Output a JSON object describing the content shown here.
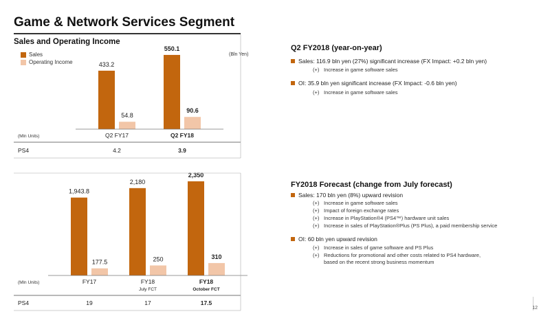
{
  "page": {
    "title": "Game & Network Services Segment",
    "page_number": "12",
    "colors": {
      "sales": "#c2660e",
      "oi": "#f2c6a8",
      "accent": "#c2660e"
    }
  },
  "chart_data": [
    {
      "type": "bar",
      "title": "Sales and Operating Income",
      "unit_label": "(Bln Yen)",
      "categories": [
        "Q2 FY17",
        "Q2 FY18"
      ],
      "category_bold": [
        false,
        true
      ],
      "series": [
        {
          "name": "Sales",
          "values": [
            433.2,
            550.1
          ],
          "labels": [
            "433.2",
            "550.1"
          ],
          "bold": [
            false,
            true
          ]
        },
        {
          "name": "Operating Income",
          "values": [
            54.8,
            90.6
          ],
          "labels": [
            "54.8",
            "90.6"
          ],
          "bold": [
            false,
            true
          ]
        }
      ],
      "ylim": [
        0,
        560
      ],
      "grid": false,
      "legend": "top-left",
      "units_row": {
        "label": "(Mln Units)",
        "row_name": "PS4",
        "values": [
          "4.2",
          "3.9"
        ],
        "bold": [
          false,
          true
        ]
      }
    },
    {
      "type": "bar",
      "categories": [
        "FY17",
        "FY18",
        "FY18"
      ],
      "category_sub": [
        "",
        "July FCT",
        "October FCT"
      ],
      "category_bold": [
        false,
        false,
        true
      ],
      "series": [
        {
          "name": "Sales",
          "values": [
            1943.8,
            2180,
            2350
          ],
          "labels": [
            "1,943.8",
            "2,180",
            "2,350"
          ],
          "bold": [
            false,
            false,
            true
          ]
        },
        {
          "name": "Operating Income",
          "values": [
            177.5,
            250,
            310
          ],
          "labels": [
            "177.5",
            "250",
            "310"
          ],
          "bold": [
            false,
            false,
            true
          ]
        }
      ],
      "ylim": [
        0,
        2400
      ],
      "grid": false,
      "units_row": {
        "label": "(Mln Units)",
        "row_name": "PS4",
        "values": [
          "19",
          "17",
          "17.5"
        ],
        "bold": [
          false,
          false,
          true
        ]
      }
    }
  ],
  "right": {
    "q2": {
      "heading": "Q2 FY2018",
      "heading_paren": "(year-on-year)",
      "bullets": [
        {
          "text": "Sales: 116.9 bln yen (27%) significant increase (FX Impact: +0.2 bln yen)",
          "subs": [
            "Increase in game software sales"
          ]
        },
        {
          "text": "OI: 35.9 bln yen significant increase (FX Impact: -0.6 bln yen)",
          "subs": [
            "Increase in game software sales"
          ]
        }
      ]
    },
    "fy": {
      "heading": "FY2018 Forecast",
      "heading_paren": "(change from July forecast)",
      "bullets": [
        {
          "text": "Sales: 170 bln yen (8%) upward revision",
          "subs": [
            "Increase in game software sales",
            "Impact of foreign exchange rates",
            "Increase in PlayStation®4 (PS4™) hardware unit sales",
            "Increase in sales of PlayStation®Plus (PS Plus), a paid membership service"
          ]
        },
        {
          "text": "OI: 60 bln yen upward revision",
          "subs": [
            "Increase in sales of game software and PS Plus",
            "Reductions for promotional and other costs related to PS4 hardware,"
          ],
          "continuation": "based on the recent strong business momentum"
        }
      ],
      "plus_marker": "(+)"
    }
  }
}
